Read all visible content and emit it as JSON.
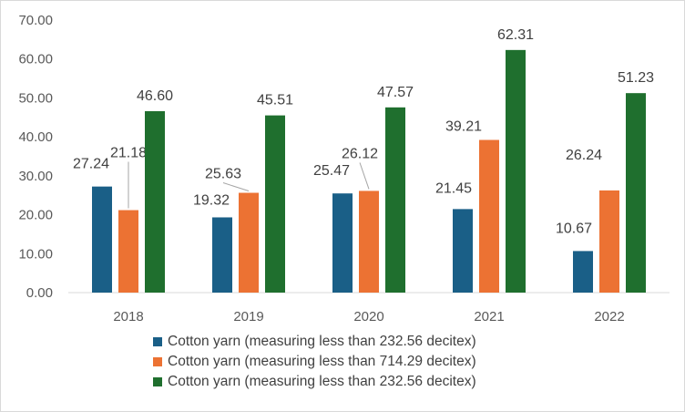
{
  "chart_data": {
    "type": "bar",
    "categories": [
      "2018",
      "2019",
      "2020",
      "2021",
      "2022"
    ],
    "series": [
      {
        "name": "Cotton yarn (measuring less than 232.56 decitex)",
        "color": "#1a5f87",
        "values": [
          27.24,
          19.32,
          25.47,
          21.45,
          10.67
        ]
      },
      {
        "name": "Cotton yarn (measuring less than 714.29 decitex)",
        "color": "#ec7233",
        "values": [
          21.18,
          25.63,
          26.12,
          39.21,
          26.24
        ]
      },
      {
        "name": "Cotton yarn (measuring less than 232.56 decitex)",
        "color": "#1f6f2e",
        "values": [
          46.6,
          45.51,
          47.57,
          62.31,
          51.23
        ]
      }
    ],
    "data_labels": [
      [
        "27.24",
        "19.32",
        "25.47",
        "21.45",
        "10.67"
      ],
      [
        "21.18",
        "25.63",
        "26.12",
        "39.21",
        "26.24"
      ],
      [
        "46.60",
        "45.51",
        "47.57",
        "62.31",
        "51.23"
      ]
    ],
    "y_ticks": [
      "0.00",
      "10.00",
      "20.00",
      "30.00",
      "40.00",
      "50.00",
      "60.00",
      "70.00"
    ],
    "ylim": [
      0,
      70
    ],
    "grid": false,
    "legend_position": "bottom",
    "title": "",
    "xlabel": "",
    "ylabel": ""
  }
}
